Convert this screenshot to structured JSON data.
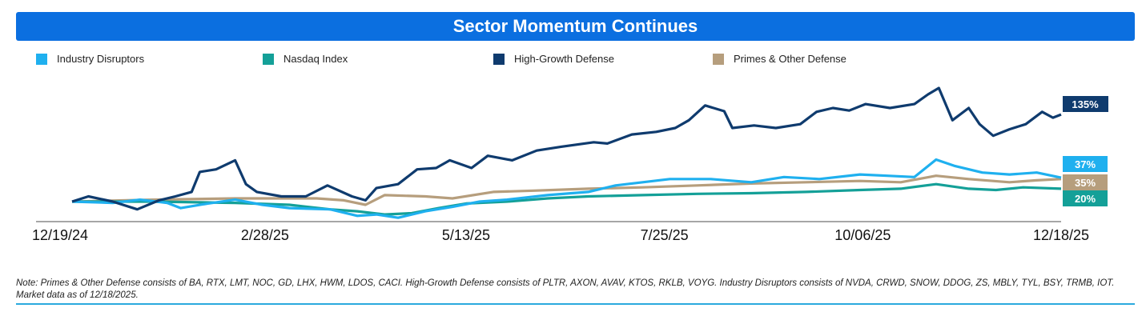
{
  "title": "Sector Momentum Continues",
  "chart_data": {
    "type": "line",
    "title": "Sector Momentum Continues",
    "xlabel": "",
    "ylabel": "",
    "x_unit": "days since 12/19/24",
    "xlim": [
      0,
      364
    ],
    "ylim": [
      -30,
      180
    ],
    "grid": false,
    "legend_position": "top",
    "x_ticks": [
      {
        "day": 0,
        "label": "12/19/24"
      },
      {
        "day": 71,
        "label": "2/28/25"
      },
      {
        "day": 145,
        "label": "5/13/25"
      },
      {
        "day": 218,
        "label": "7/25/25"
      },
      {
        "day": 291,
        "label": "10/06/25"
      },
      {
        "day": 364,
        "label": "12/18/25"
      }
    ],
    "series": [
      {
        "name": "Industry Disruptors",
        "color": "#1fb0ef",
        "end_label": "37%",
        "points": [
          [
            0,
            0
          ],
          [
            15,
            -2
          ],
          [
            25,
            3
          ],
          [
            35,
            -2
          ],
          [
            40,
            -10
          ],
          [
            50,
            -3
          ],
          [
            60,
            3
          ],
          [
            70,
            -5
          ],
          [
            80,
            -10
          ],
          [
            95,
            -12
          ],
          [
            105,
            -22
          ],
          [
            112,
            -20
          ],
          [
            120,
            -25
          ],
          [
            130,
            -15
          ],
          [
            140,
            -8
          ],
          [
            150,
            0
          ],
          [
            160,
            3
          ],
          [
            175,
            10
          ],
          [
            190,
            15
          ],
          [
            200,
            25
          ],
          [
            210,
            30
          ],
          [
            220,
            35
          ],
          [
            235,
            35
          ],
          [
            250,
            30
          ],
          [
            262,
            38
          ],
          [
            275,
            35
          ],
          [
            290,
            42
          ],
          [
            300,
            40
          ],
          [
            310,
            38
          ],
          [
            318,
            65
          ],
          [
            325,
            55
          ],
          [
            335,
            45
          ],
          [
            345,
            42
          ],
          [
            355,
            45
          ],
          [
            364,
            37
          ]
        ]
      },
      {
        "name": "Nasdaq Index",
        "color": "#14a098",
        "end_label": "20%",
        "points": [
          [
            0,
            0
          ],
          [
            30,
            0
          ],
          [
            60,
            -2
          ],
          [
            80,
            -5
          ],
          [
            95,
            -12
          ],
          [
            105,
            -15
          ],
          [
            115,
            -20
          ],
          [
            125,
            -18
          ],
          [
            135,
            -10
          ],
          [
            145,
            -3
          ],
          [
            160,
            0
          ],
          [
            175,
            5
          ],
          [
            190,
            8
          ],
          [
            210,
            10
          ],
          [
            230,
            12
          ],
          [
            250,
            13
          ],
          [
            270,
            15
          ],
          [
            290,
            18
          ],
          [
            305,
            20
          ],
          [
            318,
            27
          ],
          [
            330,
            20
          ],
          [
            340,
            18
          ],
          [
            350,
            22
          ],
          [
            364,
            20
          ]
        ]
      },
      {
        "name": "High-Growth Defense",
        "color": "#0f3b6e",
        "end_label": "135%",
        "points": [
          [
            0,
            0
          ],
          [
            6,
            8
          ],
          [
            15,
            0
          ],
          [
            24,
            -12
          ],
          [
            32,
            2
          ],
          [
            38,
            8
          ],
          [
            44,
            15
          ],
          [
            47,
            46
          ],
          [
            53,
            50
          ],
          [
            60,
            64
          ],
          [
            64,
            27
          ],
          [
            68,
            15
          ],
          [
            77,
            8
          ],
          [
            86,
            8
          ],
          [
            94,
            25
          ],
          [
            103,
            8
          ],
          [
            108,
            2
          ],
          [
            112,
            21
          ],
          [
            120,
            27
          ],
          [
            127,
            50
          ],
          [
            134,
            52
          ],
          [
            139,
            64
          ],
          [
            147,
            52
          ],
          [
            153,
            71
          ],
          [
            162,
            64
          ],
          [
            171,
            79
          ],
          [
            180,
            85
          ],
          [
            192,
            92
          ],
          [
            197,
            90
          ],
          [
            206,
            104
          ],
          [
            215,
            108
          ],
          [
            222,
            114
          ],
          [
            227,
            126
          ],
          [
            233,
            149
          ],
          [
            240,
            140
          ],
          [
            243,
            114
          ],
          [
            251,
            118
          ],
          [
            259,
            114
          ],
          [
            268,
            120
          ],
          [
            274,
            139
          ],
          [
            280,
            145
          ],
          [
            286,
            141
          ],
          [
            292,
            151
          ],
          [
            301,
            145
          ],
          [
            310,
            151
          ],
          [
            315,
            166
          ],
          [
            319,
            176
          ],
          [
            324,
            126
          ],
          [
            330,
            145
          ],
          [
            334,
            120
          ],
          [
            339,
            102
          ],
          [
            345,
            112
          ],
          [
            351,
            120
          ],
          [
            357,
            139
          ],
          [
            361,
            130
          ],
          [
            364,
            135
          ]
        ]
      },
      {
        "name": "Primes & Other Defense",
        "color": "#b69e7d",
        "end_label": "35%",
        "points": [
          [
            0,
            0
          ],
          [
            30,
            3
          ],
          [
            60,
            5
          ],
          [
            90,
            5
          ],
          [
            100,
            2
          ],
          [
            108,
            -5
          ],
          [
            115,
            10
          ],
          [
            130,
            8
          ],
          [
            140,
            5
          ],
          [
            155,
            15
          ],
          [
            170,
            17
          ],
          [
            190,
            20
          ],
          [
            210,
            22
          ],
          [
            230,
            25
          ],
          [
            250,
            28
          ],
          [
            270,
            30
          ],
          [
            290,
            32
          ],
          [
            305,
            30
          ],
          [
            318,
            40
          ],
          [
            330,
            35
          ],
          [
            345,
            30
          ],
          [
            355,
            33
          ],
          [
            364,
            35
          ]
        ]
      }
    ]
  },
  "note": "Note: Primes & Other Defense consists of BA, RTX, LMT, NOC, GD, LHX, HWM, LDOS, CACI. High-Growth Defense consists of PLTR, AXON, AVAV, KTOS, RKLB, VOYG. Industry Disruptors consists of NVDA, CRWD, SNOW, DDOG, ZS, MBLY, TYL, BSY, TRMB, IOT. Market data as of 12/18/2025."
}
